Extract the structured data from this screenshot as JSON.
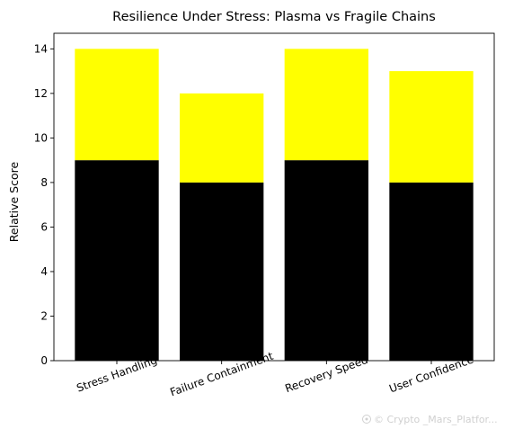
{
  "chart_data": {
    "type": "bar",
    "stacked": true,
    "title": "Resilience Under Stress: Plasma vs Fragile Chains",
    "xlabel": "",
    "ylabel": "Relative Score",
    "categories": [
      "Stress Handling",
      "Failure Containment",
      "Recovery Speed",
      "User Confidence"
    ],
    "series": [
      {
        "values": [
          9,
          8,
          9,
          8
        ],
        "color": "#000000"
      },
      {
        "values": [
          5,
          4,
          5,
          5
        ],
        "color": "#ffff00"
      }
    ],
    "ylim": [
      0,
      14.7
    ],
    "yticks": [
      0,
      2,
      4,
      6,
      8,
      10,
      12,
      14
    ],
    "xtick_rotation_deg": -20,
    "grid": false,
    "legend": "none"
  },
  "watermark": {
    "text": "© Crypto _Mars_Platfor...",
    "icon": "watermark-logo-icon"
  }
}
